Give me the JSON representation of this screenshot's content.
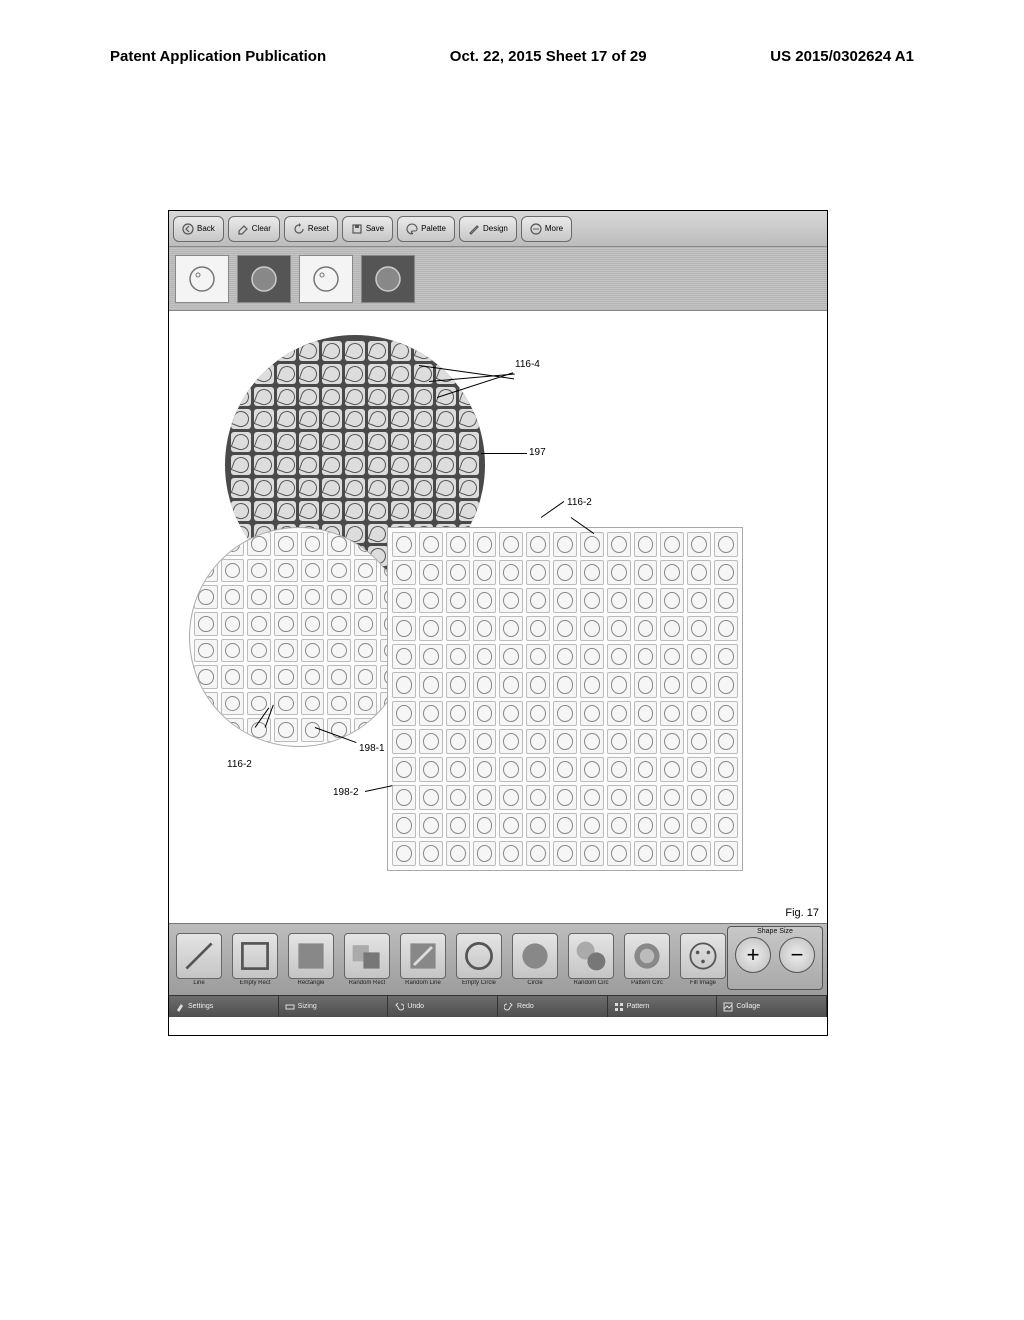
{
  "header": {
    "left": "Patent Application Publication",
    "center": "Oct. 22, 2015  Sheet 17 of 29",
    "right": "US 2015/0302624 A1"
  },
  "top_toolbar": {
    "back": "Back",
    "clear": "Clear",
    "reset": "Reset",
    "save": "Save",
    "palette": "Palette",
    "design": "Design",
    "more": "More"
  },
  "callouts": {
    "c1": "116-4",
    "c2": "197",
    "c3": "116-2",
    "c4": "198-1",
    "c5": "116-2",
    "c6": "198-2"
  },
  "figure_label": "Fig. 17",
  "shape_toolbar": {
    "shapes": [
      {
        "name": "line",
        "label": "Line"
      },
      {
        "name": "empty-rect",
        "label": "Empty Rect"
      },
      {
        "name": "rectangle",
        "label": "Rectangle"
      },
      {
        "name": "random-rect",
        "label": "Random Rect"
      },
      {
        "name": "random-line",
        "label": "Random Line"
      },
      {
        "name": "empty-circle",
        "label": "Empty Circle"
      },
      {
        "name": "circle",
        "label": "Circle"
      },
      {
        "name": "random-circ",
        "label": "Random Circ"
      },
      {
        "name": "pattern-circ",
        "label": "Pattern Circ"
      },
      {
        "name": "fill-image",
        "label": "Fill Image"
      }
    ],
    "size_title": "Shape Size",
    "plus": "+",
    "minus": "−"
  },
  "tabs": {
    "settings": "Settings",
    "sizing": "Sizing",
    "undo": "Undo",
    "redo": "Redo",
    "pattern": "Pattern",
    "collage": "Collage"
  },
  "colors": {
    "bg": "#ffffff",
    "toolbar_top": "#d8d8d8",
    "toolbar_bottom": "#bcbcbc",
    "dark_circle": "#4a4a4a",
    "light_shape_border": "#aaaaaa"
  }
}
